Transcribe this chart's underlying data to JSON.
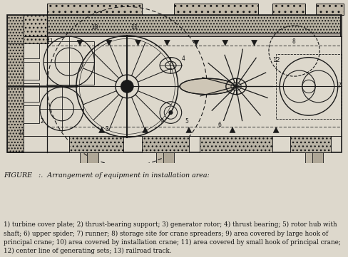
{
  "figure_width": 4.89,
  "figure_height": 3.61,
  "dpi": 100,
  "bg_color": "#ddd8cc",
  "line_color": "#1a1a1a",
  "caption": "FIGURE   :.  Arrangement of equipment in installation area:",
  "legend_text": "1) turbine cover plate; 2) thrust-bearing support; 3) generator rotor; 4) thrust bearing; 5) rotor hub with\nshaft; 6) upper spider; 7) runner; 8) storage site for crane spreaders; 9) area covered by large hook of\nprincipal crane; 10) area covered by installation crane; 11) area covered by small hook of principal crane;\n12) center line of generating sets; 13) railroad track.",
  "caption_fontsize": 6.8,
  "legend_fontsize": 6.3,
  "hatch_color": "#888070"
}
